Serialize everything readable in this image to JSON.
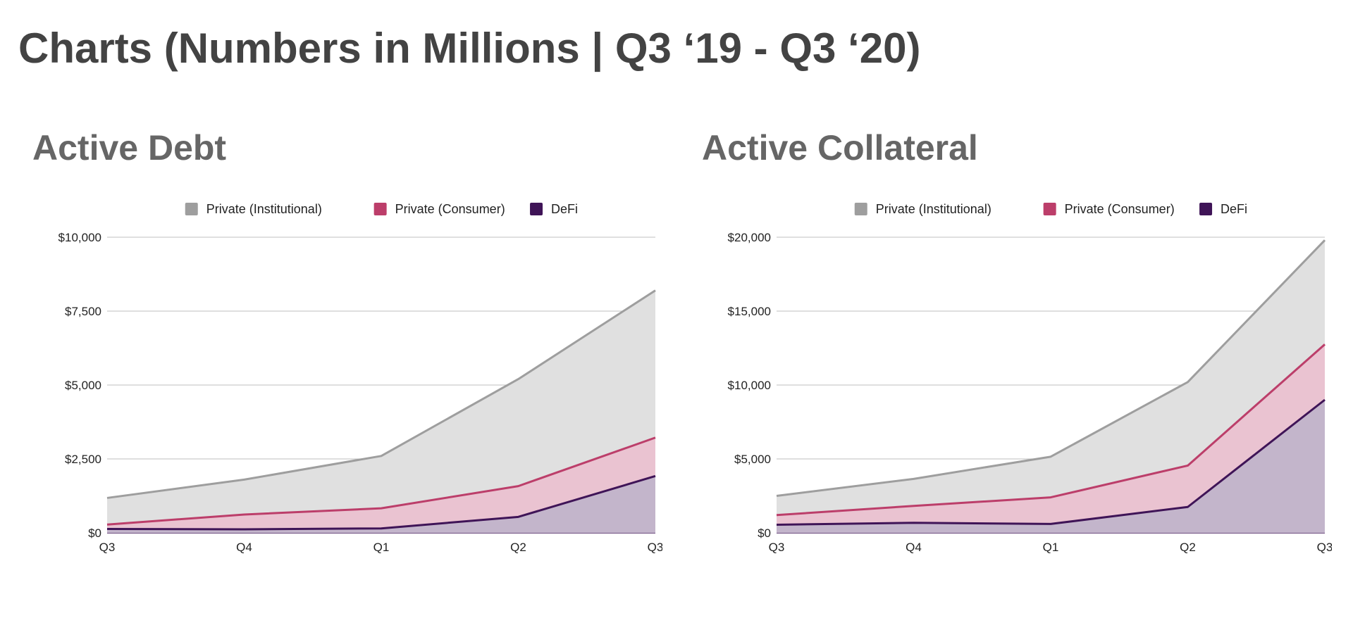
{
  "page": {
    "title": "Charts (Numbers in Millions | Q3 ‘19 - Q3 ‘20)"
  },
  "chart_data": [
    {
      "type": "area",
      "stacked": false,
      "title": "Active Debt",
      "categories": [
        "Q3",
        "Q4",
        "Q1",
        "Q2",
        "Q3"
      ],
      "xlabel": "",
      "ylabel": "",
      "ylim": [
        0,
        10000
      ],
      "yticks": [
        0,
        2500,
        5000,
        7500,
        10000
      ],
      "ytick_labels": [
        "$0",
        "$2,500",
        "$5,000",
        "$7,500",
        "$10,000"
      ],
      "grid": true,
      "legend_position": "top-center",
      "series": [
        {
          "name": "Private (Institutional)",
          "color": "#9e9e9e",
          "fill": "#e0e0e0",
          "values": [
            1180,
            1800,
            2600,
            5200,
            8200
          ]
        },
        {
          "name": "Private (Consumer)",
          "color": "#bc3e6a",
          "fill": "#eac3d1",
          "values": [
            280,
            620,
            830,
            1580,
            3220
          ]
        },
        {
          "name": "DeFi",
          "color": "#3f1457",
          "fill": "#c3b5cb",
          "values": [
            130,
            120,
            150,
            540,
            1920
          ]
        }
      ]
    },
    {
      "type": "area",
      "stacked": false,
      "title": "Active Collateral",
      "categories": [
        "Q3",
        "Q4",
        "Q1",
        "Q2",
        "Q3"
      ],
      "xlabel": "",
      "ylabel": "",
      "ylim": [
        0,
        20000
      ],
      "yticks": [
        0,
        5000,
        10000,
        15000,
        20000
      ],
      "ytick_labels": [
        "$0",
        "$5,000",
        "$10,000",
        "$15,000",
        "$20,000"
      ],
      "grid": true,
      "legend_position": "top-center",
      "series": [
        {
          "name": "Private (Institutional)",
          "color": "#9e9e9e",
          "fill": "#e0e0e0",
          "values": [
            2500,
            3650,
            5150,
            10200,
            19800
          ]
        },
        {
          "name": "Private (Consumer)",
          "color": "#bc3e6a",
          "fill": "#eac3d1",
          "values": [
            1200,
            1820,
            2400,
            4550,
            12750
          ]
        },
        {
          "name": "DeFi",
          "color": "#3f1457",
          "fill": "#c3b5cb",
          "values": [
            550,
            680,
            600,
            1750,
            9000
          ]
        }
      ]
    }
  ]
}
